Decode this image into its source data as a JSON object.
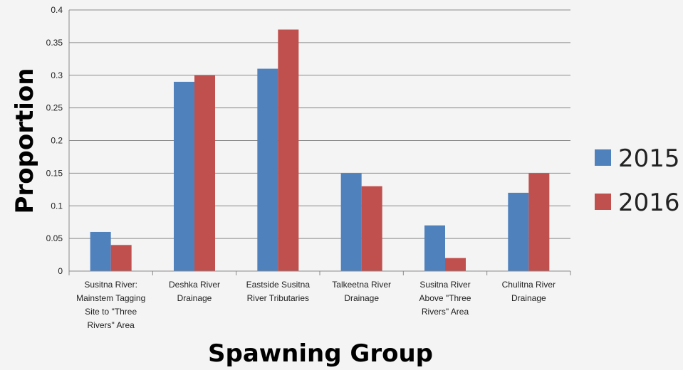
{
  "chart_data": {
    "type": "bar",
    "title": "",
    "xlabel": "Spawning Group",
    "ylabel": "Proportion",
    "ylim": [
      0,
      0.4
    ],
    "yticks": [
      "0",
      "0.05",
      "0.1",
      "0.15",
      "0.2",
      "0.25",
      "0.3",
      "0.35",
      "0.4"
    ],
    "grid": true,
    "legend": "right",
    "categories": [
      [
        "Susitna River:",
        "Mainstem Tagging",
        "Site to \"Three",
        "Rivers\" Area"
      ],
      [
        "Deshka River",
        "Drainage"
      ],
      [
        "Eastside Susitna",
        "River Tributaries"
      ],
      [
        "Talkeetna River",
        "Drainage"
      ],
      [
        "Susitna River",
        "Above \"Three",
        "Rivers\" Area"
      ],
      [
        "Chulitna River",
        "Drainage"
      ]
    ],
    "series": [
      {
        "name": "2015",
        "color": "#4f81bd",
        "values": [
          0.06,
          0.29,
          0.31,
          0.15,
          0.07,
          0.12
        ]
      },
      {
        "name": "2016",
        "color": "#c0504d",
        "values": [
          0.04,
          0.3,
          0.37,
          0.13,
          0.02,
          0.15
        ]
      }
    ]
  }
}
